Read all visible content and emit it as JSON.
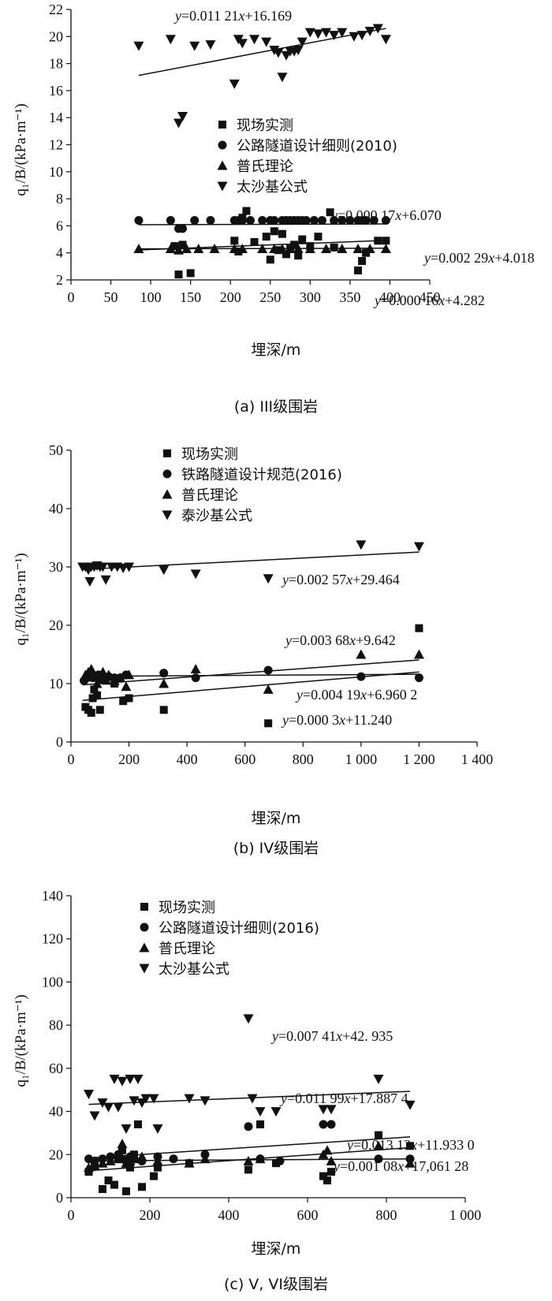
{
  "chart_data": [
    {
      "type": "scatter",
      "caption": "(a) III级围岩",
      "xlabel": "埋深/m",
      "ylabel": "q₁/B/(kPa·m⁻¹)",
      "xlim": [
        0,
        450
      ],
      "ylim": [
        2,
        22
      ],
      "xticks": [
        0,
        50,
        100,
        150,
        200,
        250,
        300,
        350,
        400,
        450
      ],
      "yticks": [
        2,
        4,
        6,
        8,
        10,
        12,
        14,
        16,
        18,
        20,
        22
      ],
      "xtick_labels": [
        "0",
        "50",
        "100",
        "150",
        "200",
        "250",
        "300",
        "350",
        "400",
        "450"
      ],
      "ytick_labels": [
        "2",
        "4",
        "6",
        "8",
        "10",
        "12",
        "14",
        "16",
        "18",
        "20",
        "22"
      ],
      "legend": [
        "现场实测",
        "公路隧道设计细则(2010)",
        "普氏理论",
        "太沙基公式"
      ],
      "series": [
        {
          "name": "现场实测",
          "marker": "square",
          "x": [
            130,
            135,
            140,
            150,
            205,
            210,
            215,
            220,
            230,
            245,
            250,
            255,
            260,
            265,
            270,
            275,
            280,
            285,
            290,
            300,
            310,
            325,
            330,
            360,
            365,
            370,
            385,
            395
          ],
          "y": [
            4.5,
            2.4,
            4.6,
            2.5,
            4.9,
            4.1,
            6.6,
            7.1,
            4.8,
            5.2,
            3.5,
            5.6,
            4.2,
            5.4,
            3.9,
            4.3,
            4.6,
            3.8,
            5.0,
            4.5,
            5.2,
            7.0,
            4.4,
            2.7,
            3.4,
            4.0,
            4.9,
            4.9
          ]
        },
        {
          "name": "公路隧道设计细则(2010)",
          "marker": "circle",
          "x": [
            85,
            125,
            135,
            140,
            155,
            175,
            205,
            210,
            215,
            225,
            240,
            250,
            255,
            265,
            270,
            275,
            280,
            285,
            290,
            295,
            305,
            315,
            330,
            340,
            350,
            360,
            365,
            370,
            380,
            395
          ],
          "y": [
            6.4,
            6.4,
            5.8,
            5.8,
            6.4,
            6.4,
            6.4,
            6.4,
            6.4,
            6.4,
            6.4,
            6.4,
            6.4,
            6.4,
            6.4,
            6.4,
            6.4,
            6.4,
            6.4,
            6.4,
            6.4,
            6.4,
            6.4,
            6.4,
            6.4,
            6.4,
            6.4,
            6.4,
            6.4,
            6.4
          ]
        },
        {
          "name": "普氏理论",
          "marker": "triangle-up",
          "x": [
            85,
            125,
            135,
            145,
            160,
            180,
            205,
            215,
            240,
            255,
            265,
            275,
            285,
            300,
            320,
            340,
            360,
            375,
            395
          ],
          "y": [
            4.3,
            4.3,
            4.2,
            4.3,
            4.3,
            4.3,
            4.3,
            4.3,
            4.3,
            4.3,
            4.3,
            4.3,
            4.3,
            4.3,
            4.3,
            4.3,
            4.3,
            4.3,
            4.3
          ]
        },
        {
          "name": "太沙基公式",
          "marker": "triangle-down",
          "x": [
            85,
            125,
            135,
            140,
            155,
            175,
            205,
            210,
            215,
            230,
            245,
            255,
            260,
            265,
            270,
            275,
            280,
            285,
            290,
            300,
            310,
            320,
            330,
            340,
            355,
            365,
            375,
            385,
            395
          ],
          "y": [
            19.3,
            19.8,
            13.6,
            14.1,
            19.3,
            19.4,
            16.5,
            19.8,
            19.5,
            19.8,
            19.6,
            19.0,
            18.8,
            17.0,
            18.6,
            18.9,
            18.9,
            19.0,
            19.6,
            20.3,
            20.2,
            20.3,
            20.1,
            20.3,
            20.0,
            20.1,
            20.4,
            20.6,
            19.8
          ]
        }
      ],
      "fits": [
        {
          "series": "太沙基公式",
          "slope": 0.01121,
          "intercept": 16.169,
          "x_range": [
            85,
            395
          ],
          "label": "y=0.011 21x+16.169"
        },
        {
          "series": "公路隧道设计细则(2010)",
          "slope": 0.00017,
          "intercept": 6.07,
          "x_range": [
            85,
            395
          ],
          "label": "y=0.000 17x+6.070"
        },
        {
          "series": "现场实测",
          "slope": 0.00229,
          "intercept": 4.018,
          "x_range": [
            85,
            395
          ],
          "label": "y=0.002 29x+4.018"
        },
        {
          "series": "普氏理论",
          "slope": 0.00016,
          "intercept": 4.282,
          "x_range": [
            85,
            395
          ],
          "label": "y=0.000 16x+4.282"
        }
      ]
    },
    {
      "type": "scatter",
      "caption": "(b) IV级围岩",
      "xlabel": "埋深/m",
      "ylabel": "q₁/B/(kPa·m⁻¹)",
      "xlim": [
        0,
        1400
      ],
      "ylim": [
        0,
        50
      ],
      "xticks": [
        0,
        200,
        400,
        600,
        800,
        1000,
        1200,
        1400
      ],
      "yticks": [
        0,
        10,
        20,
        30,
        40,
        50
      ],
      "xtick_labels": [
        "0",
        "200",
        "400",
        "600",
        "800",
        "1 000",
        "1 200",
        "1 400"
      ],
      "ytick_labels": [
        "0",
        "10",
        "20",
        "30",
        "40",
        "50"
      ],
      "legend": [
        "现场实测",
        "铁路隧道设计规范(2016)",
        "普氏理论",
        "泰沙基公式"
      ],
      "series": [
        {
          "name": "现场实测",
          "marker": "square",
          "x": [
            50,
            60,
            70,
            75,
            80,
            90,
            100,
            110,
            120,
            150,
            180,
            200,
            320,
            680,
            1200
          ],
          "y": [
            6.0,
            5.5,
            5.0,
            7.5,
            9.0,
            8.0,
            5.5,
            11.0,
            10.5,
            10.0,
            7.0,
            7.5,
            5.5,
            3.2,
            19.5
          ]
        },
        {
          "name": "铁路隧道设计规范(2016)",
          "marker": "circle",
          "x": [
            45,
            55,
            65,
            75,
            85,
            95,
            105,
            115,
            130,
            150,
            170,
            190,
            320,
            430,
            680,
            1000,
            1200
          ],
          "y": [
            10.5,
            11.0,
            11.2,
            11.0,
            11.3,
            11.5,
            10.8,
            11.0,
            11.2,
            11.0,
            11.0,
            11.5,
            11.8,
            11.0,
            12.3,
            11.2,
            11.0
          ]
        },
        {
          "name": "普氏理论",
          "marker": "triangle-up",
          "x": [
            50,
            60,
            70,
            80,
            90,
            100,
            110,
            130,
            150,
            170,
            190,
            200,
            320,
            430,
            680,
            1000,
            1200
          ],
          "y": [
            11.5,
            12.0,
            12.5,
            11.5,
            10.0,
            11.0,
            12.0,
            11.5,
            10.5,
            11.0,
            9.5,
            11.5,
            10.0,
            12.5,
            9.0,
            15.0,
            15.0
          ]
        },
        {
          "name": "泰沙基公式",
          "marker": "triangle-down",
          "x": [
            40,
            50,
            60,
            65,
            70,
            80,
            90,
            100,
            110,
            120,
            140,
            160,
            180,
            200,
            320,
            430,
            680,
            1000,
            1200
          ],
          "y": [
            30.0,
            30.0,
            29.5,
            27.5,
            30.0,
            30.0,
            30.2,
            30.0,
            30.0,
            27.8,
            30.0,
            30.0,
            29.8,
            30.0,
            29.5,
            28.8,
            28.0,
            33.8,
            33.5
          ]
        }
      ],
      "fits": [
        {
          "series": "泰沙基公式",
          "slope": 0.00257,
          "intercept": 29.464,
          "x_range": [
            40,
            1200
          ],
          "label": "y=0.002 57x+29.464"
        },
        {
          "series": "普氏理论",
          "slope": 0.00368,
          "intercept": 9.642,
          "x_range": [
            40,
            1200
          ],
          "label": "y=0.003 68x+9.642"
        },
        {
          "series": "现场实测",
          "slope": 0.00419,
          "intercept": 6.9602,
          "x_range": [
            40,
            1200
          ],
          "label": "y=0.004 19x+6.960 2"
        },
        {
          "series": "铁路隧道设计规范(2016)",
          "slope": 0.0003,
          "intercept": 11.24,
          "x_range": [
            40,
            1200
          ],
          "label": "y=0.000 3x+11.240"
        }
      ]
    },
    {
      "type": "scatter",
      "caption": "(c) V, VI级围岩",
      "xlabel": "埋深/m",
      "ylabel": "q₁/B/(kPa·m⁻¹)",
      "xlim": [
        0,
        1000
      ],
      "ylim": [
        0,
        140
      ],
      "xticks": [
        0,
        200,
        400,
        600,
        800,
        1000
      ],
      "yticks": [
        0,
        20,
        40,
        60,
        80,
        100,
        120,
        140
      ],
      "xtick_labels": [
        "0",
        "200",
        "400",
        "600",
        "800",
        "1 000"
      ],
      "ytick_labels": [
        "0",
        "20",
        "40",
        "60",
        "80",
        "100",
        "120",
        "140"
      ],
      "legend": [
        "现场实测",
        "公路隧道设计细则(2016)",
        "普氏理论",
        "太沙基公式"
      ],
      "series": [
        {
          "name": "现场实测",
          "marker": "square",
          "x": [
            45,
            60,
            80,
            95,
            110,
            120,
            130,
            140,
            150,
            160,
            170,
            180,
            210,
            220,
            300,
            450,
            480,
            520,
            640,
            650,
            660,
            780,
            860
          ],
          "y": [
            12,
            15,
            4,
            8,
            6,
            18,
            22,
            3,
            14,
            20,
            34,
            5,
            10,
            14,
            16,
            13,
            34,
            16,
            10,
            8,
            12,
            29,
            24
          ]
        },
        {
          "name": "公路隧道设计细则(2016)",
          "marker": "circle",
          "x": [
            45,
            60,
            80,
            100,
            120,
            130,
            140,
            150,
            160,
            180,
            220,
            260,
            340,
            450,
            480,
            530,
            640,
            660,
            780,
            860
          ],
          "y": [
            18,
            17,
            18,
            19,
            20,
            18,
            17,
            19,
            18,
            17,
            19,
            18,
            20,
            33,
            18,
            17,
            34,
            34,
            18,
            18
          ]
        },
        {
          "name": "普氏理论",
          "marker": "triangle-up",
          "x": [
            45,
            60,
            80,
            100,
            120,
            130,
            140,
            150,
            160,
            180,
            220,
            300,
            340,
            450,
            480,
            640,
            650,
            660,
            780,
            860
          ],
          "y": [
            14,
            15,
            16,
            17,
            18,
            25,
            16,
            17,
            18,
            19,
            17,
            16,
            18,
            17,
            18,
            20,
            22,
            17,
            24,
            16
          ]
        },
        {
          "name": "太沙基公式",
          "marker": "triangle-down",
          "x": [
            45,
            60,
            80,
            95,
            110,
            120,
            130,
            140,
            150,
            160,
            170,
            180,
            190,
            210,
            220,
            300,
            340,
            450,
            460,
            480,
            520,
            640,
            660,
            780,
            860
          ],
          "y": [
            48,
            38,
            44,
            42,
            55,
            42,
            54,
            32,
            55,
            45,
            55,
            44,
            46,
            46,
            32,
            46,
            45,
            83,
            46,
            40,
            40,
            41,
            41,
            55,
            43
          ]
        }
      ],
      "fits": [
        {
          "series": "太沙基公式",
          "slope": 0.00741,
          "intercept": 42.935,
          "x_range": [
            45,
            860
          ],
          "label": "y=0.007 41x+42. 935"
        },
        {
          "series": "公路隧道设计细则(2016)",
          "slope": 0.01199,
          "intercept": 17.8874,
          "x_range": [
            45,
            860
          ],
          "label": "y=0.011 99x+17.887 4"
        },
        {
          "series": "现场实测",
          "slope": 0.01313,
          "intercept": 11.933,
          "x_range": [
            45,
            860
          ],
          "label": "y=0.013 13x+11.933 0"
        },
        {
          "series": "普氏理论",
          "slope": 0.00108,
          "intercept": 17.06128,
          "x_range": [
            45,
            860
          ],
          "label": "y=0.001 08x+17,061 28"
        }
      ]
    }
  ]
}
